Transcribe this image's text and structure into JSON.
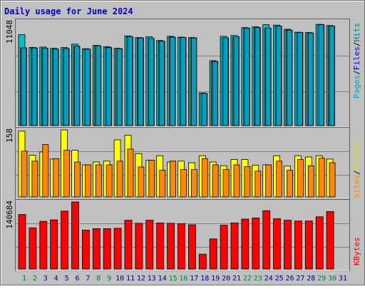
{
  "colors": {
    "background": "#c0c0c0",
    "title": "#0000cc",
    "hits": "#00c0c0",
    "files": "#00c0f0",
    "pages": "#00a0c0",
    "visits": "#ffff00",
    "sites": "#ff8800",
    "kbytes": "#ff0000",
    "weekend_day": "#008040",
    "weekday_day": "#000080"
  },
  "chart_data": [
    {
      "type": "bar",
      "title": "Daily usage for June 2024",
      "panel": "hits-files-pages",
      "legend": [
        "Pages",
        "Files",
        "Hits"
      ],
      "ytick_label": "11048",
      "ylim": [
        0,
        12600
      ],
      "categories": [
        "1",
        "2",
        "3",
        "4",
        "5",
        "6",
        "7",
        "8",
        "9",
        "10",
        "11",
        "12",
        "13",
        "14",
        "15",
        "16",
        "17",
        "18",
        "19",
        "20",
        "21",
        "22",
        "23",
        "24",
        "25",
        "26",
        "27",
        "28",
        "29",
        "30",
        "31"
      ],
      "weekend_days": [
        "1",
        "2",
        "8",
        "9",
        "15",
        "16",
        "22",
        "23",
        "29",
        "30"
      ],
      "series": [
        {
          "name": "Hits",
          "values": [
            11000,
            9450,
            9500,
            9350,
            9450,
            9850,
            9300,
            9700,
            9550,
            9350,
            10850,
            10650,
            10750,
            10300,
            10800,
            10700,
            10650,
            3950,
            7850,
            10800,
            10900,
            11850,
            11950,
            12200,
            12150,
            11650,
            11300,
            11250,
            12250,
            12100,
            0
          ]
        },
        {
          "name": "Files",
          "values": [
            9400,
            9400,
            9350,
            9250,
            9300,
            9600,
            9250,
            9650,
            9450,
            9300,
            10750,
            10600,
            10550,
            10200,
            10700,
            10650,
            10600,
            3900,
            7750,
            10600,
            10750,
            11800,
            11850,
            11800,
            12050,
            11550,
            11250,
            11200,
            12200,
            12050,
            0
          ]
        },
        {
          "name": "Pages",
          "values": [
            9400,
            9400,
            9350,
            9250,
            9300,
            9600,
            9250,
            9650,
            9450,
            9300,
            10750,
            10600,
            10550,
            10200,
            10700,
            10650,
            10600,
            3900,
            7750,
            10600,
            10750,
            11800,
            11850,
            11800,
            12050,
            11550,
            11250,
            11200,
            12200,
            12050,
            0
          ]
        }
      ]
    },
    {
      "type": "bar",
      "panel": "visits-sites",
      "legend": [
        "Sites",
        "Visits"
      ],
      "ytick_label": "158",
      "ylim": [
        0,
        161
      ],
      "series": [
        {
          "name": "Visits",
          "values": [
            158,
            100,
            108,
            91,
            161,
            112,
            77,
            84,
            86,
            137,
            148,
            104,
            88,
            99,
            84,
            86,
            82,
            99,
            84,
            75,
            90,
            90,
            76,
            77,
            99,
            74,
            99,
            96,
            99,
            91,
            0
          ]
        },
        {
          "name": "Sites",
          "values": [
            110,
            86,
            126,
            92,
            112,
            84,
            77,
            77,
            77,
            86,
            115,
            72,
            88,
            64,
            86,
            66,
            66,
            92,
            77,
            66,
            77,
            73,
            62,
            77,
            86,
            64,
            90,
            75,
            93,
            82,
            0
          ]
        }
      ]
    },
    {
      "type": "bar",
      "panel": "kbytes",
      "legend": [
        "KBytes"
      ],
      "ytick_label": "140684",
      "ylim": [
        0,
        176000
      ],
      "series": [
        {
          "name": "KBytes",
          "values": [
            143000,
            108000,
            125000,
            129000,
            152000,
            178000,
            102000,
            106000,
            106000,
            107000,
            128000,
            120000,
            128000,
            121000,
            120000,
            119000,
            116000,
            39000,
            79000,
            115000,
            121000,
            131000,
            134000,
            153000,
            132000,
            128000,
            126000,
            126000,
            137000,
            151000,
            0
          ]
        }
      ]
    }
  ]
}
